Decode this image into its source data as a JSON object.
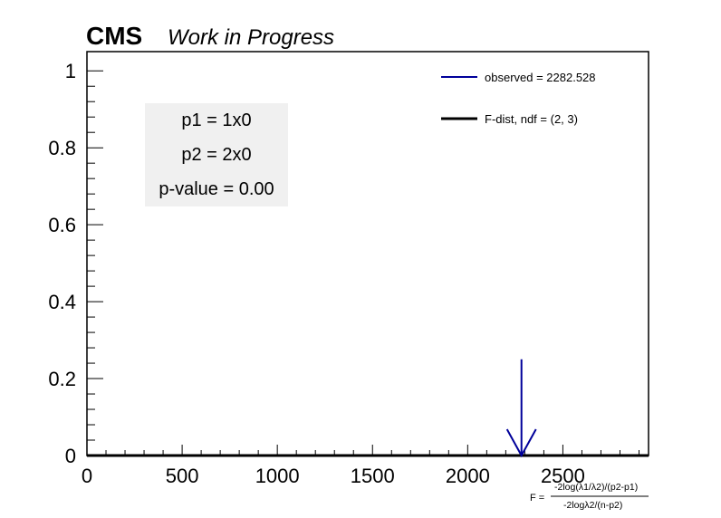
{
  "header": {
    "experiment": "CMS",
    "status": "Work in Progress"
  },
  "info_box": {
    "lines": [
      "p1 = 1x0",
      "p2 = 2x0",
      "p-value = 0.00"
    ]
  },
  "colors": {
    "observed": "#00009a",
    "fdist": "#000000",
    "info_box_bg": "#f0f0f0"
  },
  "chart_data": {
    "type": "line",
    "xlim": [
      0,
      2950
    ],
    "ylim": [
      0,
      1.05
    ],
    "xticks": [
      0,
      500,
      1000,
      1500,
      2000,
      2500
    ],
    "xtick_labels": [
      "0",
      "500",
      "1000",
      "1500",
      "2000",
      "2500"
    ],
    "yticks": [
      0,
      0.2,
      0.4,
      0.6,
      0.8,
      1
    ],
    "ytick_labels": [
      "0",
      "0.2",
      "0.4",
      "0.6",
      "0.8",
      "1"
    ],
    "xlabel": {
      "prefix": "F = ",
      "numerator": "-2log(λ1/λ2)/(p2-p1)",
      "denominator": "-2logλ2/(n-p2)"
    },
    "series": [
      {
        "name": "F-dist, ndf = (2, 3)",
        "x": [
          0,
          500,
          1000,
          1500,
          2000,
          2500,
          2950
        ],
        "y": [
          0,
          0,
          0,
          0,
          0,
          0,
          0
        ]
      }
    ],
    "observed": {
      "label": "observed = 2282.528",
      "value": 2282.528,
      "arrow_top_y": 0.25
    },
    "legend_position": "top-right"
  }
}
